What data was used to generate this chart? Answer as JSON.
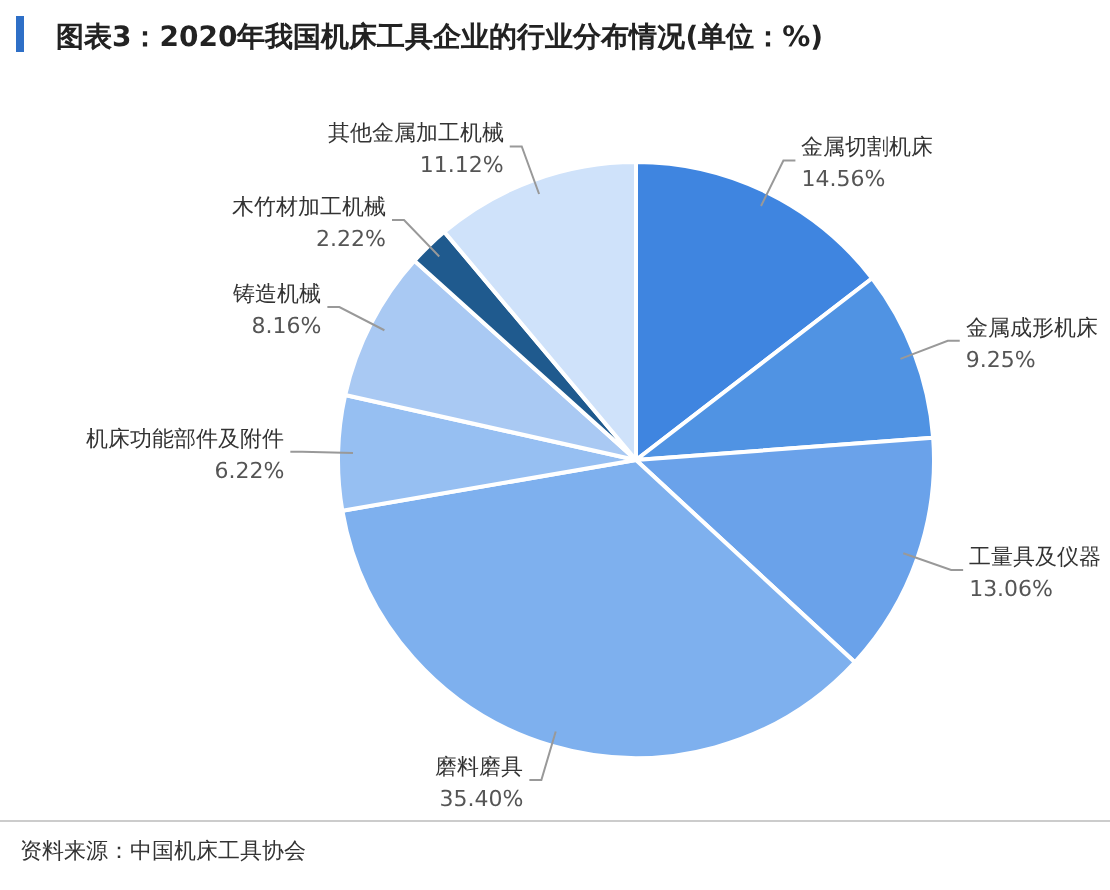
{
  "chart_data": {
    "type": "pie",
    "title": "图表3：2020年我国机床工具企业的行业分布情况(单位：%)",
    "categories": [
      "金属切割机床",
      "金属成形机床",
      "工量具及仪器",
      "磨料磨具",
      "机床功能部件及附件",
      "铸造机械",
      "木竹材加工机械",
      "其他金属加工机械"
    ],
    "values": [
      14.56,
      9.25,
      13.06,
      35.4,
      6.22,
      8.16,
      2.22,
      11.12
    ],
    "value_labels": [
      "14.56%",
      "9.25%",
      "13.06%",
      "35.40%",
      "6.22%",
      "8.16%",
      "2.22%",
      "11.12%"
    ],
    "colors": [
      "#3f85e0",
      "#5093e3",
      "#6aa2ea",
      "#7eb0ee",
      "#96bff2",
      "#a9c9f3",
      "#1f5a8e",
      "#cfe2fa"
    ],
    "legend": false,
    "annotations": [
      "资料来源：中国机床工具协会"
    ]
  }
}
